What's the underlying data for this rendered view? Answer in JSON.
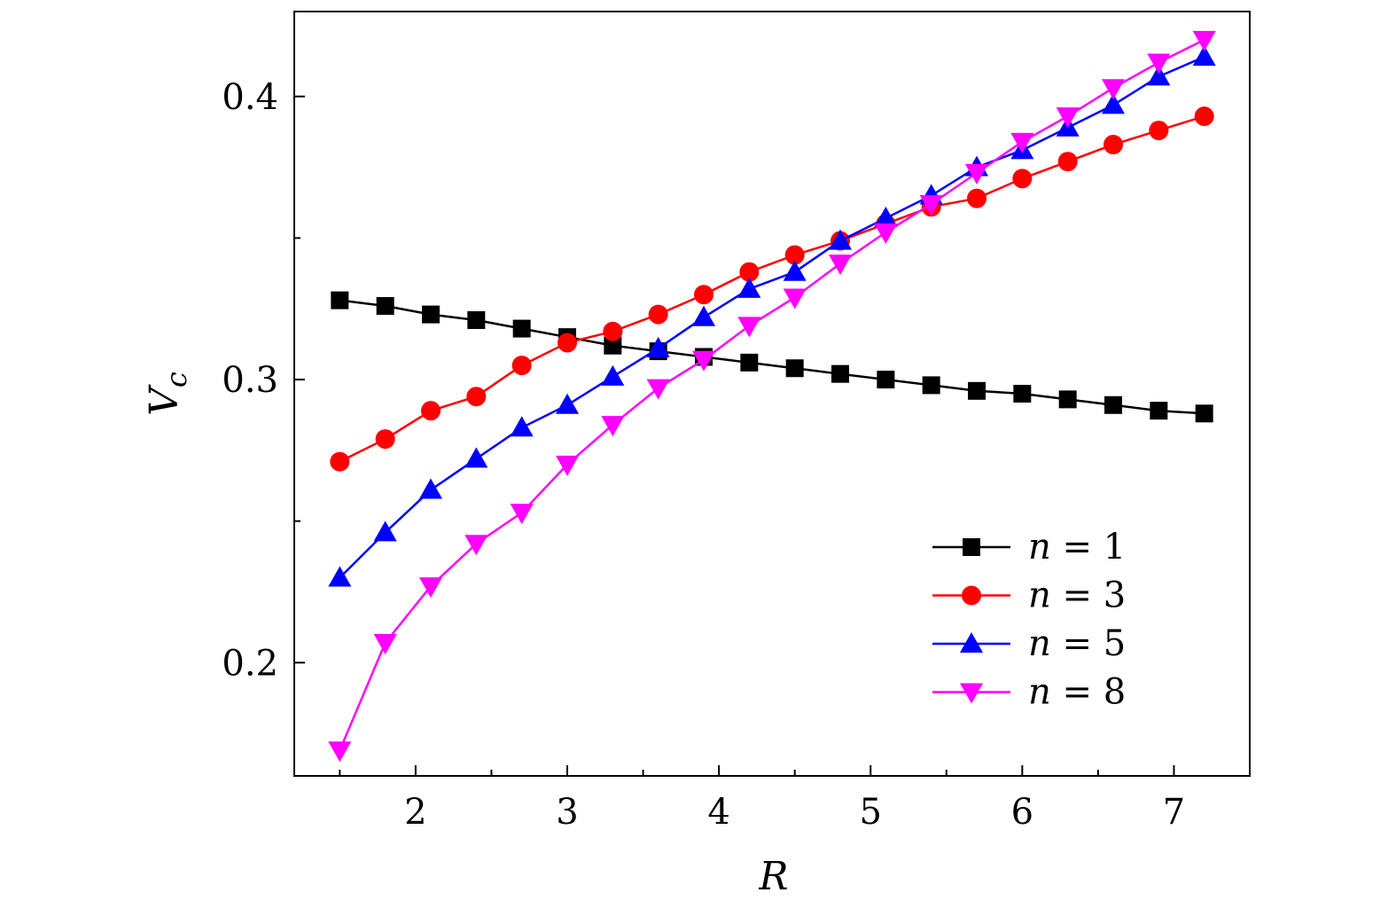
{
  "chart_data": {
    "type": "line",
    "xlabel": "R",
    "ylabel_main": "V",
    "ylabel_sub": "c",
    "xlim": [
      1.2,
      7.5
    ],
    "ylim": [
      0.16,
      0.43
    ],
    "x_ticks": [
      2,
      3,
      4,
      5,
      6,
      7
    ],
    "x_minor_ticks": [
      1.5,
      2.5,
      3.5,
      4.5,
      5.5,
      6.5,
      7.5
    ],
    "y_ticks": [
      0.2,
      0.3,
      0.4
    ],
    "y_tick_labels": [
      "0.2",
      "0.3",
      "0.4"
    ],
    "y_minor_ticks": [
      0.25,
      0.35
    ],
    "grid": false,
    "legend_position": "bottom-right",
    "x": [
      1.5,
      1.8,
      2.1,
      2.4,
      2.7,
      3.0,
      3.3,
      3.6,
      3.9,
      4.2,
      4.5,
      4.8,
      5.1,
      5.4,
      5.7,
      6.0,
      6.3,
      6.6,
      6.9,
      7.2
    ],
    "series": [
      {
        "name": "n = 1",
        "legend_var": "n",
        "legend_rest": " = 1",
        "color": "#000000",
        "marker": "square",
        "values": [
          0.328,
          0.326,
          0.323,
          0.321,
          0.318,
          0.315,
          0.312,
          0.31,
          0.308,
          0.306,
          0.304,
          0.302,
          0.3,
          0.298,
          0.296,
          0.295,
          0.293,
          0.291,
          0.289,
          0.288
        ]
      },
      {
        "name": "n = 3",
        "legend_var": "n",
        "legend_rest": " = 3",
        "color": "#ff0000",
        "marker": "circle",
        "values": [
          0.271,
          0.279,
          0.289,
          0.294,
          0.305,
          0.313,
          0.317,
          0.323,
          0.33,
          0.338,
          0.344,
          0.349,
          0.355,
          0.361,
          0.364,
          0.371,
          0.377,
          0.383,
          0.388,
          0.393
        ]
      },
      {
        "name": "n = 5",
        "legend_var": "n",
        "legend_rest": " = 5",
        "color": "#0000ff",
        "marker": "triangle-up",
        "values": [
          0.23,
          0.246,
          0.261,
          0.272,
          0.283,
          0.291,
          0.301,
          0.311,
          0.322,
          0.332,
          0.338,
          0.349,
          0.357,
          0.365,
          0.375,
          0.381,
          0.389,
          0.397,
          0.407,
          0.414
        ]
      },
      {
        "name": "n = 8",
        "legend_var": "n",
        "legend_rest": " = 8",
        "color": "#ff00ff",
        "marker": "triangle-down",
        "values": [
          0.169,
          0.207,
          0.227,
          0.242,
          0.253,
          0.27,
          0.284,
          0.297,
          0.307,
          0.319,
          0.329,
          0.341,
          0.352,
          0.362,
          0.373,
          0.384,
          0.393,
          0.403,
          0.412,
          0.42
        ]
      }
    ]
  }
}
